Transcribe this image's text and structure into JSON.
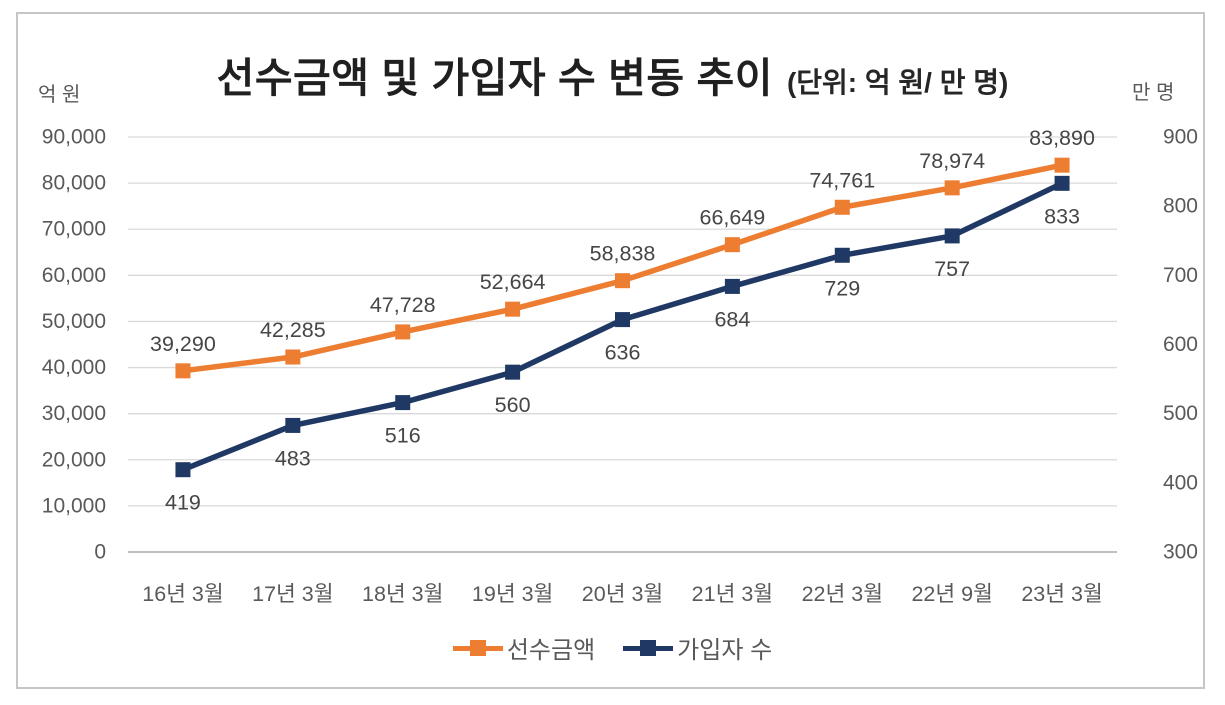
{
  "chart_data": {
    "type": "line",
    "title": "선수금액 및 가입자 수 변동 추이",
    "subtitle": "(단위: 억 원/ 만 명)",
    "categories": [
      "16년 3월",
      "17년 3월",
      "18년 3월",
      "19년 3월",
      "20년 3월",
      "21년 3월",
      "22년 3월",
      "22년 9월",
      "23년 3월"
    ],
    "series": [
      {
        "name": "선수금액",
        "axis": "left",
        "color": "#ED7D31",
        "values": [
          39290,
          42285,
          47728,
          52664,
          58838,
          66649,
          74761,
          78974,
          83890
        ],
        "labels": [
          "39,290",
          "42,285",
          "47,728",
          "52,664",
          "58,838",
          "66,649",
          "74,761",
          "78,974",
          "83,890"
        ],
        "label_side": "above"
      },
      {
        "name": "가입자 수",
        "axis": "right",
        "color": "#1F3864",
        "values": [
          419,
          483,
          516,
          560,
          636,
          684,
          729,
          757,
          833
        ],
        "labels": [
          "419",
          "483",
          "516",
          "560",
          "636",
          "684",
          "729",
          "757",
          "833"
        ],
        "label_side": "below"
      }
    ],
    "left_axis": {
      "label": "억 원",
      "min": 0,
      "max": 90000,
      "step": 10000,
      "ticks": [
        "0",
        "10,000",
        "20,000",
        "30,000",
        "40,000",
        "50,000",
        "60,000",
        "70,000",
        "80,000",
        "90,000"
      ]
    },
    "right_axis": {
      "label": "만 명",
      "min": 300,
      "max": 900,
      "step": 100,
      "ticks": [
        "300",
        "400",
        "500",
        "600",
        "700",
        "800",
        "900"
      ]
    },
    "grid": true,
    "legend_position": "bottom"
  },
  "colors": {
    "grid_line": "#D9D9D9",
    "axis_line": "#BFBFBF",
    "tick_text": "#595959",
    "data_label_text": "#464646",
    "title_text": "#202020",
    "frame_border": "#C6C6C6"
  }
}
